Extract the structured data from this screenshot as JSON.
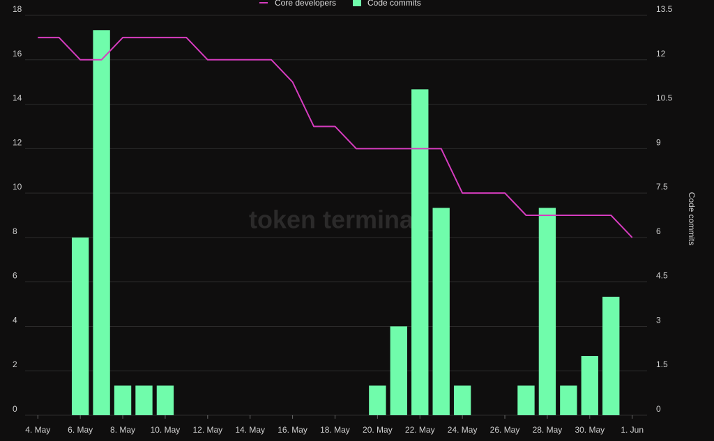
{
  "chart_data": {
    "type": "bar+line",
    "watermark": "token terminal_",
    "legend": {
      "placement": "top-center",
      "items": [
        {
          "label": "Core developers",
          "kind": "line",
          "color": "#d63cbf"
        },
        {
          "label": "Code commits",
          "kind": "bar",
          "color": "#70fcab"
        }
      ]
    },
    "x_tick_labels": [
      "4. May",
      "6. May",
      "8. May",
      "10. May",
      "12. May",
      "14. May",
      "16. May",
      "18. May",
      "20. May",
      "22. May",
      "24. May",
      "26. May",
      "28. May",
      "30. May",
      "1. Jun"
    ],
    "x_tick_days": [
      4,
      6,
      8,
      10,
      12,
      14,
      16,
      18,
      20,
      22,
      24,
      26,
      28,
      30,
      32
    ],
    "x_range_days": [
      3.4,
      32.7
    ],
    "y_left": {
      "label": "",
      "ylim": [
        0,
        18
      ],
      "ticks": [
        "0",
        "2",
        "4",
        "6",
        "8",
        "10",
        "12",
        "14",
        "16",
        "18"
      ]
    },
    "y_right": {
      "label": "Code commits",
      "ylim": [
        0,
        13.5
      ],
      "ticks": [
        "0",
        "1.5",
        "3",
        "4.5",
        "6",
        "7.5",
        "9",
        "10.5",
        "12",
        "13.5"
      ]
    },
    "grid": true,
    "series": [
      {
        "name": "Core developers",
        "axis": "left",
        "type": "line",
        "color": "#d63cbf",
        "days": [
          4,
          5,
          6,
          7,
          8,
          9,
          10,
          11,
          12,
          13,
          14,
          15,
          16,
          17,
          18,
          19,
          20,
          21,
          22,
          23,
          24,
          25,
          26,
          27,
          28,
          29,
          30,
          31,
          32
        ],
        "values": [
          17,
          17,
          16,
          16,
          17,
          17,
          17,
          17,
          16,
          16,
          16,
          16,
          15,
          13,
          13,
          12,
          12,
          12,
          12,
          12,
          10,
          10,
          10,
          9,
          9,
          9,
          9,
          9,
          8
        ]
      },
      {
        "name": "Code commits",
        "axis": "right",
        "type": "bar",
        "color": "#70fcab",
        "days": [
          6,
          7,
          8,
          9,
          10,
          20,
          21,
          22,
          23,
          24,
          27,
          28,
          29,
          30,
          31
        ],
        "values": [
          6,
          13,
          1,
          1,
          1,
          1,
          3,
          11,
          7,
          1,
          1,
          7,
          1,
          2,
          4
        ]
      }
    ]
  }
}
